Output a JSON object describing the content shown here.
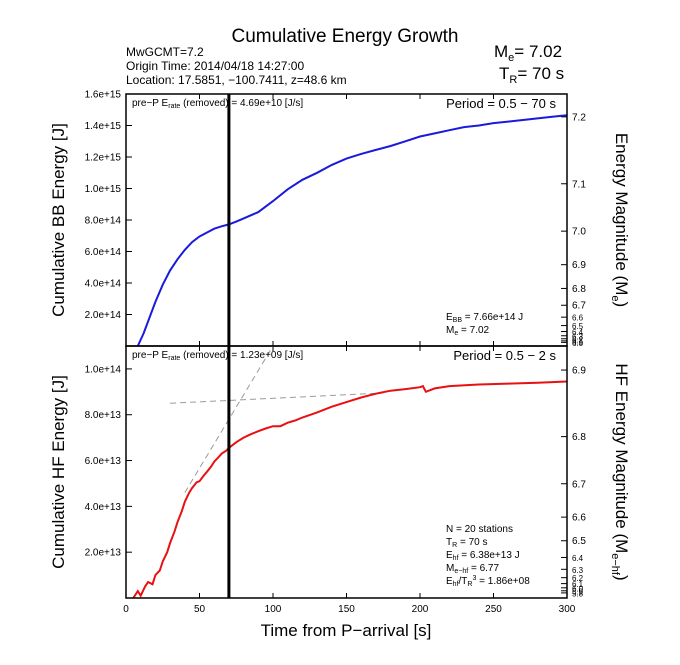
{
  "header": {
    "title": "Cumulative Energy Growth",
    "event_line1": "MwGCMT=7.2",
    "event_line2": "Origin Time: 2014/04/18 14:27:00",
    "event_line3": "Location: 17.5851, −100.7411, z=48.6 km",
    "me_label": "M",
    "me_sub": "e",
    "me_value": "= 7.02",
    "tr_label": "T",
    "tr_sub": "R",
    "tr_value": "= 70 s"
  },
  "chart_data": [
    {
      "type": "line",
      "xlabel": "Time from P−arrival [s]",
      "ylabel": "Cumulative BB Energy [J]",
      "y2label_main": "Energy Magnitude (M",
      "y2label_sub": "e",
      "y2label_end": ")",
      "xlim": [
        0,
        300
      ],
      "ylim": [
        0,
        1600000000000000.0
      ],
      "yticks": [
        {
          "v": 200000000000000.0,
          "label": "2.0e+14"
        },
        {
          "v": 400000000000000.0,
          "label": "4.0e+14"
        },
        {
          "v": 600000000000000.0,
          "label": "6.0e+14"
        },
        {
          "v": 800000000000000.0,
          "label": "8.0e+14"
        },
        {
          "v": 1000000000000000.0,
          "label": "1.0e+15"
        },
        {
          "v": 1200000000000000.0,
          "label": "1.2e+15"
        },
        {
          "v": 1400000000000000.0,
          "label": "1.4e+15"
        },
        {
          "v": 1600000000000000.0,
          "label": "1.6e+15"
        }
      ],
      "y2ticks_labeled": [
        "6.7",
        "6.8",
        "6.9",
        "7.0",
        "7.1",
        "7.2"
      ],
      "y2ticks_minor_labeled": [
        "6.6",
        "6.5",
        "6.4",
        "6.3",
        "6.2",
        "6.1",
        "6.0"
      ],
      "marker_line_x": 70,
      "annotations": {
        "prep": {
          "pre": "pre−P E",
          "sub": "rate",
          "post": " (removed) = 4.69e+10 [J/s]"
        },
        "period": "Period = 0.5 − 70 s",
        "ebb": {
          "pre": "E",
          "sub": "BB",
          "post": " = 7.66e+14 J"
        },
        "me": {
          "pre": "M",
          "sub": "e",
          "post": " = 7.02"
        }
      },
      "series": [
        {
          "color": "#1a1adc",
          "x": [
            8,
            12,
            16,
            20,
            25,
            30,
            35,
            40,
            45,
            50,
            55,
            60,
            65,
            70,
            75,
            80,
            90,
            100,
            110,
            120,
            130,
            140,
            150,
            160,
            170,
            180,
            190,
            200,
            210,
            220,
            230,
            240,
            250,
            260,
            270,
            280,
            290,
            300
          ],
          "y": [
            0,
            80000000000000.0,
            180000000000000.0,
            280000000000000.0,
            390000000000000.0,
            480000000000000.0,
            550000000000000.0,
            610000000000000.0,
            660000000000000.0,
            695000000000000.0,
            720000000000000.0,
            745000000000000.0,
            760000000000000.0,
            772000000000000.0,
            790000000000000.0,
            810000000000000.0,
            850000000000000.0,
            920000000000000.0,
            995000000000000.0,
            1055000000000000.0,
            1100000000000000.0,
            1150000000000000.0,
            1190000000000000.0,
            1220000000000000.0,
            1245000000000000.0,
            1270000000000000.0,
            1300000000000000.0,
            1330000000000000.0,
            1350000000000000.0,
            1370000000000000.0,
            1390000000000000.0,
            1400000000000000.0,
            1415000000000000.0,
            1425000000000000.0,
            1435000000000000.0,
            1445000000000000.0,
            1455000000000000.0,
            1465000000000000.0
          ]
        }
      ]
    },
    {
      "type": "line",
      "xlabel": "Time from P−arrival [s]",
      "ylabel": "Cumulative HF Energy [J]",
      "y2label_main": "HF Energy Magnitude (M",
      "y2label_sub": "e−hf",
      "y2label_end": ")",
      "xlim": [
        0,
        300
      ],
      "ylim": [
        0,
        110000000000000.0
      ],
      "xticks": [
        0,
        50,
        100,
        150,
        200,
        250,
        300
      ],
      "yticks": [
        {
          "v": 20000000000000.0,
          "label": "2.0e+13"
        },
        {
          "v": 40000000000000.0,
          "label": "4.0e+13"
        },
        {
          "v": 60000000000000.0,
          "label": "6.0e+13"
        },
        {
          "v": 80000000000000.0,
          "label": "8.0e+13"
        },
        {
          "v": 100000000000000.0,
          "label": "1.0e+14"
        }
      ],
      "y2ticks_labeled": [
        "6.5",
        "6.6",
        "6.7",
        "6.8",
        "6.9"
      ],
      "y2ticks_minor_labeled": [
        "6.4",
        "6.3",
        "6.2",
        "6.1",
        "6.0",
        "5.9",
        "5.8"
      ],
      "marker_line_x": 70,
      "annotations": {
        "prep": {
          "pre": "pre−P E",
          "sub": "rate",
          "post": " (removed) = 1.23e+09 [J/s]"
        },
        "period": "Period = 0.5 − 2 s",
        "n": "N = 20 stations",
        "tr": {
          "pre": "T",
          "sub": "R",
          "post": " = 70  s"
        },
        "ehf": {
          "pre": "E",
          "sub": "hf",
          "post": " = 6.38e+13 J"
        },
        "mehf": {
          "pre": "M",
          "sub": "e−hf",
          "post": " = 6.77"
        },
        "ratio": {
          "pre": "E",
          "sub": "hf",
          "mid": "/T",
          "sub2": "R",
          "sup": "3",
          "post": " =  1.86e+08"
        }
      },
      "series": [
        {
          "color": "#e81010",
          "x": [
            5,
            8,
            10,
            13,
            15,
            18,
            20,
            23,
            25,
            28,
            30,
            33,
            35,
            38,
            40,
            43,
            45,
            48,
            50,
            53,
            55,
            58,
            60,
            63,
            65,
            68,
            70,
            75,
            80,
            85,
            90,
            95,
            100,
            105,
            110,
            115,
            120,
            130,
            140,
            150,
            160,
            170,
            180,
            190,
            200,
            202,
            204,
            210,
            220,
            240,
            260,
            280,
            300
          ],
          "y": [
            0,
            3000000000000.0,
            1000000000000.0,
            5000000000000.0,
            7000000000000.0,
            6000000000000.0,
            10000000000000.0,
            12000000000000.0,
            16000000000000.0,
            20000000000000.0,
            24000000000000.0,
            29000000000000.0,
            33000000000000.0,
            38000000000000.0,
            42000000000000.0,
            46000000000000.0,
            48000000000000.0,
            50500000000000.0,
            51000000000000.0,
            53500000000000.0,
            55000000000000.0,
            57500000000000.0,
            59500000000000.0,
            61500000000000.0,
            63000000000000.0,
            64200000000000.0,
            65500000000000.0,
            68000000000000.0,
            70000000000000.0,
            71500000000000.0,
            72800000000000.0,
            74000000000000.0,
            75000000000000.0,
            75000000000000.0,
            76500000000000.0,
            77500000000000.0,
            78800000000000.0,
            81000000000000.0,
            83500000000000.0,
            85500000000000.0,
            87500000000000.0,
            89200000000000.0,
            90500000000000.0,
            91200000000000.0,
            92000000000000.0,
            92500000000000.0,
            90000000000000.0,
            91500000000000.0,
            92500000000000.0,
            93200000000000.0,
            93600000000000.0,
            94000000000000.0,
            94500000000000.0
          ]
        }
      ],
      "guide_lines": [
        {
          "x": [
            40,
            100
          ],
          "y": [
            46000000000000.0,
            110000000000000.0
          ]
        },
        {
          "x": [
            30,
            175
          ],
          "y": [
            85000000000000.0,
            89500000000000.0
          ]
        }
      ]
    }
  ]
}
